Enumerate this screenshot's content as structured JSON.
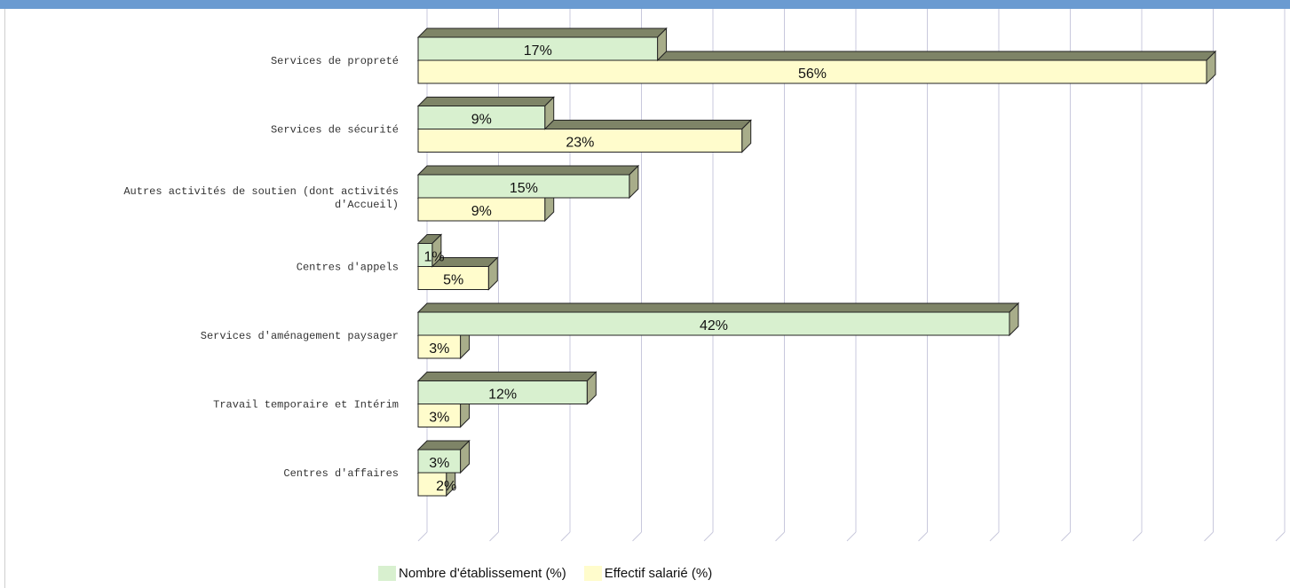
{
  "colors": {
    "header": "#6b9bd1",
    "series1_fill": "#d8f0cf",
    "series2_fill": "#fffccc",
    "bar_top": "#7e8467",
    "bar_side": "#a8ad8a",
    "gridline": "#c8c8dc"
  },
  "chart_data": {
    "type": "bar",
    "orientation": "horizontal",
    "title": "",
    "xlabel": "",
    "ylabel": "",
    "xlim": [
      0,
      60
    ],
    "grid": true,
    "legend_position": "bottom",
    "categories": [
      "Services de propreté",
      "Services de sécurité",
      "Autres activités de soutien (dont activités d'Accueil)",
      "Centres d'appels",
      "Services d'aménagement paysager",
      "Travail temporaire et Intérim",
      "Centres d'affaires"
    ],
    "series": [
      {
        "name": "Nombre d'établissement (%)",
        "values": [
          17,
          9,
          15,
          1,
          42,
          12,
          3
        ]
      },
      {
        "name": "Effectif salarié (%)",
        "values": [
          56,
          23,
          9,
          5,
          3,
          3,
          2
        ]
      }
    ]
  }
}
